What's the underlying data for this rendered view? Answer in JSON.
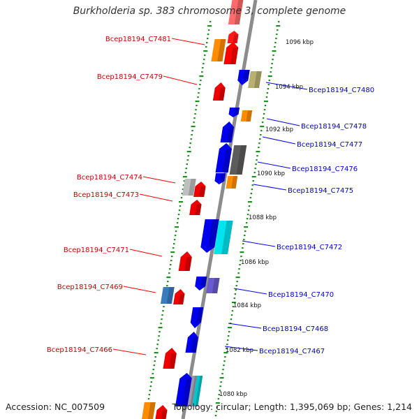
{
  "title": "Burkholderia sp. 383 chromosome 3, complete genome",
  "footer": {
    "accession": "Accession: NC_007509",
    "summary": "Topology: circular; Length: 1,395,069 bp; Genes: 1,214"
  },
  "colors": {
    "backbone": "#8c8c8c",
    "tick_ring": "#1f8f1f",
    "left_label": "#cc0000",
    "right_label": "#0000cc",
    "left_leader": "#ff0000",
    "right_leader": "#0000ff"
  },
  "scale_labels": [
    {
      "label": "1096 kbp",
      "kbp": 1096
    },
    {
      "label": "1094 kbp",
      "kbp": 1094
    },
    {
      "label": "1092 kbp",
      "kbp": 1092
    },
    {
      "label": "1090 kbp",
      "kbp": 1090
    },
    {
      "label": "1088 kbp",
      "kbp": 1088
    },
    {
      "label": "1086 kbp",
      "kbp": 1086
    },
    {
      "label": "1084 kbp",
      "kbp": 1084
    },
    {
      "label": "1082 kbp",
      "kbp": 1082
    },
    {
      "label": "1080 kbp",
      "kbp": 1080
    }
  ],
  "left_labels": [
    "Bcep18194_C7481",
    "Bcep18194_C7479",
    "Bcep18194_C7474",
    "Bcep18194_C7473",
    "Bcep18194_C7471",
    "Bcep18194_C7469",
    "Bcep18194_C7466"
  ],
  "right_labels": [
    "Bcep18194_C7480",
    "Bcep18194_C7478",
    "Bcep18194_C7477",
    "Bcep18194_C7476",
    "Bcep18194_C7475",
    "Bcep18194_C7472",
    "Bcep18194_C7470",
    "Bcep18194_C7468",
    "Bcep18194_C7467"
  ]
}
